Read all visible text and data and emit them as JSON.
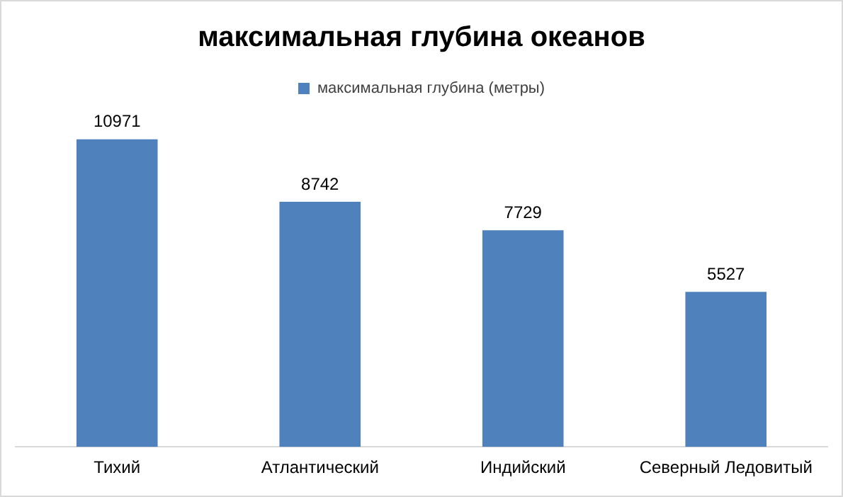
{
  "chart_data": {
    "type": "bar",
    "title": "максимальная глубина океанов",
    "categories": [
      "Тихий",
      "Атлантический",
      "Индийский",
      "Северный Ледовитый"
    ],
    "series": [
      {
        "name": "максимальная глубина (метры)",
        "color": "#4f81bd",
        "values": [
          10971,
          8742,
          7729,
          5527
        ]
      }
    ],
    "data_labels": true,
    "legend": "top",
    "grid": false
  }
}
